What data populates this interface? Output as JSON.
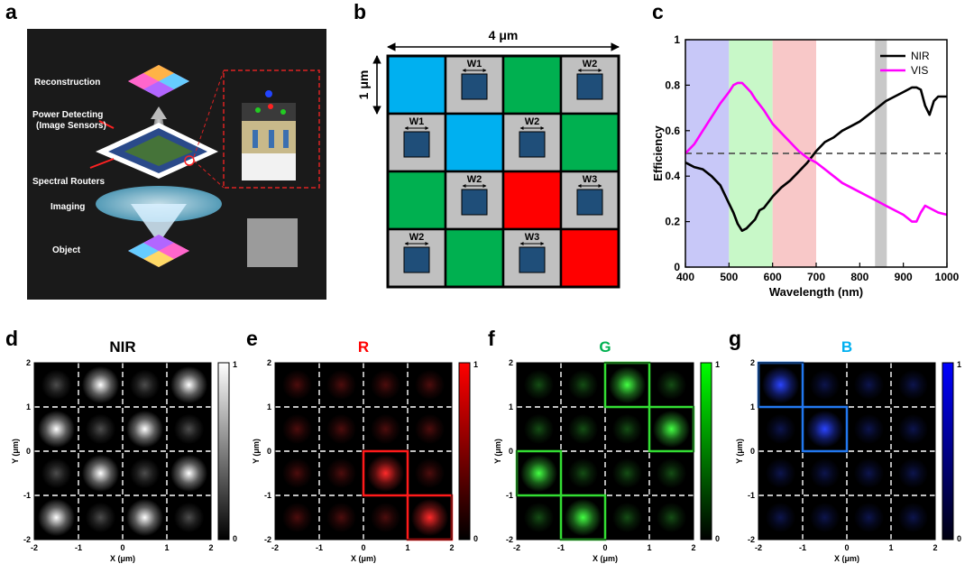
{
  "panel_labels": {
    "a": "a",
    "b": "b",
    "c": "c",
    "d": "d",
    "e": "e",
    "f": "f",
    "g": "g"
  },
  "panel_a": {
    "labels": {
      "reconstruction": "Reconstruction",
      "power_detecting_1": "Power Detecting",
      "power_detecting_2": "(Image Sensors)",
      "spectral_routers": "Spectral Routers",
      "imaging": "Imaging",
      "object": "Object"
    },
    "colors": {
      "background": "#1a1a1a",
      "inset_border": "#dd2222"
    }
  },
  "panel_b": {
    "dim_width": "4 μm",
    "dim_height": "1 μm",
    "grid": [
      [
        "B",
        "W1",
        "G",
        "W2"
      ],
      [
        "W1",
        "B",
        "W2",
        "G"
      ],
      [
        "G",
        "W2",
        "R",
        "W3"
      ],
      [
        "W2",
        "G",
        "W3",
        "R"
      ]
    ],
    "colors": {
      "B": "#00b0f0",
      "G": "#00b050",
      "R": "#ff0000",
      "W": "#c0c0c0",
      "pillar": "#1f4e79"
    }
  },
  "panel_c": {
    "xlabel": "Wavelength (nm)",
    "ylabel": "Efficiency",
    "legend": [
      "NIR",
      "VIS"
    ]
  },
  "chart_data": [
    {
      "type": "line",
      "panel": "c",
      "xlabel": "Wavelength (nm)",
      "ylabel": "Efficiency",
      "xlim": [
        400,
        1000
      ],
      "ylim": [
        0,
        1
      ],
      "xticks": [
        400,
        500,
        600,
        700,
        800,
        900,
        1000
      ],
      "yticks": [
        0,
        0.2,
        0.4,
        0.6,
        0.8,
        1
      ],
      "legend_position": "top-right",
      "bands": [
        {
          "x0": 400,
          "x1": 500,
          "color": "#c8c8f8"
        },
        {
          "x0": 500,
          "x1": 600,
          "color": "#c8f8c8"
        },
        {
          "x0": 600,
          "x1": 700,
          "color": "#f8c8c8"
        },
        {
          "x0": 835,
          "x1": 862,
          "color": "#c8c8c8"
        }
      ],
      "reference_line": {
        "y": 0.5,
        "style": "dashed",
        "color": "#555555"
      },
      "series": [
        {
          "name": "NIR",
          "color": "#000000",
          "x": [
            400,
            420,
            440,
            460,
            480,
            500,
            510,
            520,
            530,
            540,
            550,
            560,
            570,
            580,
            600,
            620,
            640,
            660,
            680,
            700,
            720,
            740,
            760,
            780,
            800,
            820,
            840,
            860,
            880,
            900,
            920,
            930,
            940,
            950,
            960,
            970,
            980,
            1000
          ],
          "y": [
            0.46,
            0.44,
            0.43,
            0.4,
            0.36,
            0.28,
            0.24,
            0.19,
            0.16,
            0.17,
            0.19,
            0.21,
            0.25,
            0.26,
            0.31,
            0.35,
            0.38,
            0.42,
            0.46,
            0.51,
            0.55,
            0.57,
            0.6,
            0.62,
            0.64,
            0.67,
            0.7,
            0.73,
            0.75,
            0.77,
            0.79,
            0.79,
            0.78,
            0.71,
            0.67,
            0.73,
            0.75,
            0.75
          ]
        },
        {
          "name": "VIS",
          "color": "#ff00ff",
          "x": [
            400,
            420,
            440,
            460,
            480,
            500,
            510,
            520,
            530,
            540,
            550,
            560,
            580,
            600,
            620,
            640,
            660,
            680,
            700,
            720,
            740,
            760,
            780,
            800,
            820,
            840,
            860,
            880,
            900,
            920,
            930,
            940,
            950,
            960,
            980,
            1000
          ],
          "y": [
            0.5,
            0.54,
            0.6,
            0.66,
            0.72,
            0.77,
            0.8,
            0.81,
            0.81,
            0.79,
            0.77,
            0.74,
            0.69,
            0.63,
            0.59,
            0.55,
            0.51,
            0.48,
            0.46,
            0.43,
            0.4,
            0.37,
            0.35,
            0.33,
            0.31,
            0.29,
            0.27,
            0.25,
            0.23,
            0.2,
            0.2,
            0.24,
            0.27,
            0.26,
            0.24,
            0.23
          ]
        }
      ]
    }
  ],
  "field_maps": [
    {
      "key": "d",
      "title": "NIR",
      "title_color": "#000000",
      "hot": "#ffffff",
      "colormap": [
        "#000000",
        "#ffffff"
      ],
      "highlight": "#ffffff",
      "highlight_cells": []
    },
    {
      "key": "e",
      "title": "R",
      "title_color": "#ff0000",
      "hot": "#ff2a2a",
      "colormap": [
        "#000000",
        "#ff0000"
      ],
      "highlight": "#ff1a1a",
      "highlight_cells": [
        [
          2,
          2
        ],
        [
          3,
          3
        ]
      ]
    },
    {
      "key": "f",
      "title": "G",
      "title_color": "#00b050",
      "hot": "#44ff44",
      "colormap": [
        "#000000",
        "#00ff00"
      ],
      "highlight": "#33dd33",
      "highlight_cells": [
        [
          0,
          2
        ],
        [
          1,
          3
        ],
        [
          2,
          0
        ],
        [
          3,
          1
        ]
      ]
    },
    {
      "key": "g",
      "title": "B",
      "title_color": "#00b0f0",
      "hot": "#2a44ff",
      "colormap": [
        "#000010",
        "#0000ff"
      ],
      "highlight": "#2277ee",
      "highlight_cells": [
        [
          0,
          0
        ],
        [
          1,
          1
        ]
      ]
    }
  ],
  "field_axes": {
    "xlabel": "X (μm)",
    "ylabel": "Y (μm)",
    "xticks": [
      "-2",
      "-1",
      "0",
      "1",
      "2"
    ],
    "yticks": [
      "2",
      "1",
      "0",
      "-1",
      "-2"
    ],
    "cbar_top": "1",
    "cbar_bottom": "0"
  }
}
